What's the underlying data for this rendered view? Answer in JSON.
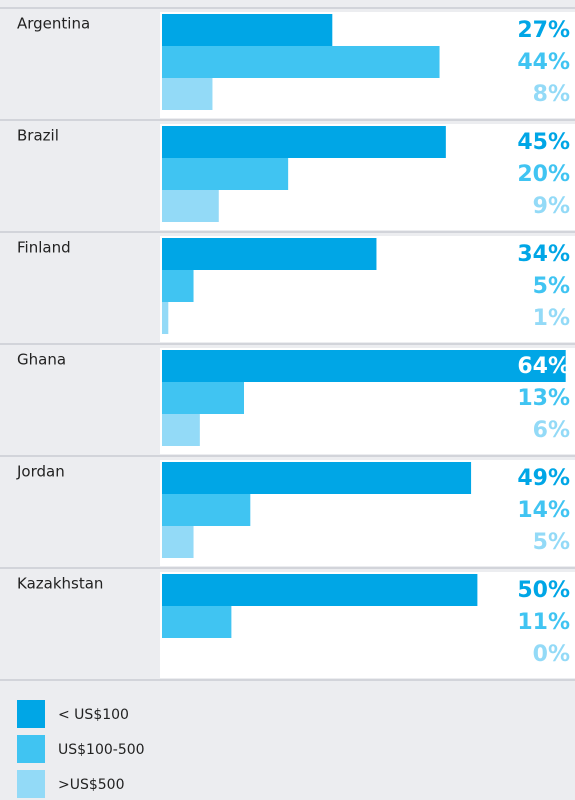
{
  "chart_data": {
    "type": "bar",
    "categories": [
      "Argentina",
      "Brazil",
      "Finland",
      "Ghana",
      "Jordan",
      "Kazakhstan"
    ],
    "series": [
      {
        "name": "< US$100",
        "color": "#00a6e6",
        "values": [
          27,
          45,
          34,
          64,
          49,
          50
        ],
        "value_labels": [
          "27%",
          "45%",
          "34%",
          "64%",
          "49%",
          "50%"
        ]
      },
      {
        "name": "US$100-500",
        "color": "#40c4f2",
        "values": [
          44,
          20,
          5,
          13,
          14,
          11
        ],
        "value_labels": [
          "44%",
          "20%",
          "5%",
          "13%",
          "14%",
          "11%"
        ]
      },
      {
        "name": ">US$500",
        "color": "#93daf7",
        "values": [
          8,
          9,
          1,
          6,
          5,
          0
        ],
        "value_labels": [
          "8%",
          "9%",
          "1%",
          "6%",
          "5%",
          "0%"
        ]
      }
    ],
    "xlim": [
      0,
      65
    ]
  }
}
